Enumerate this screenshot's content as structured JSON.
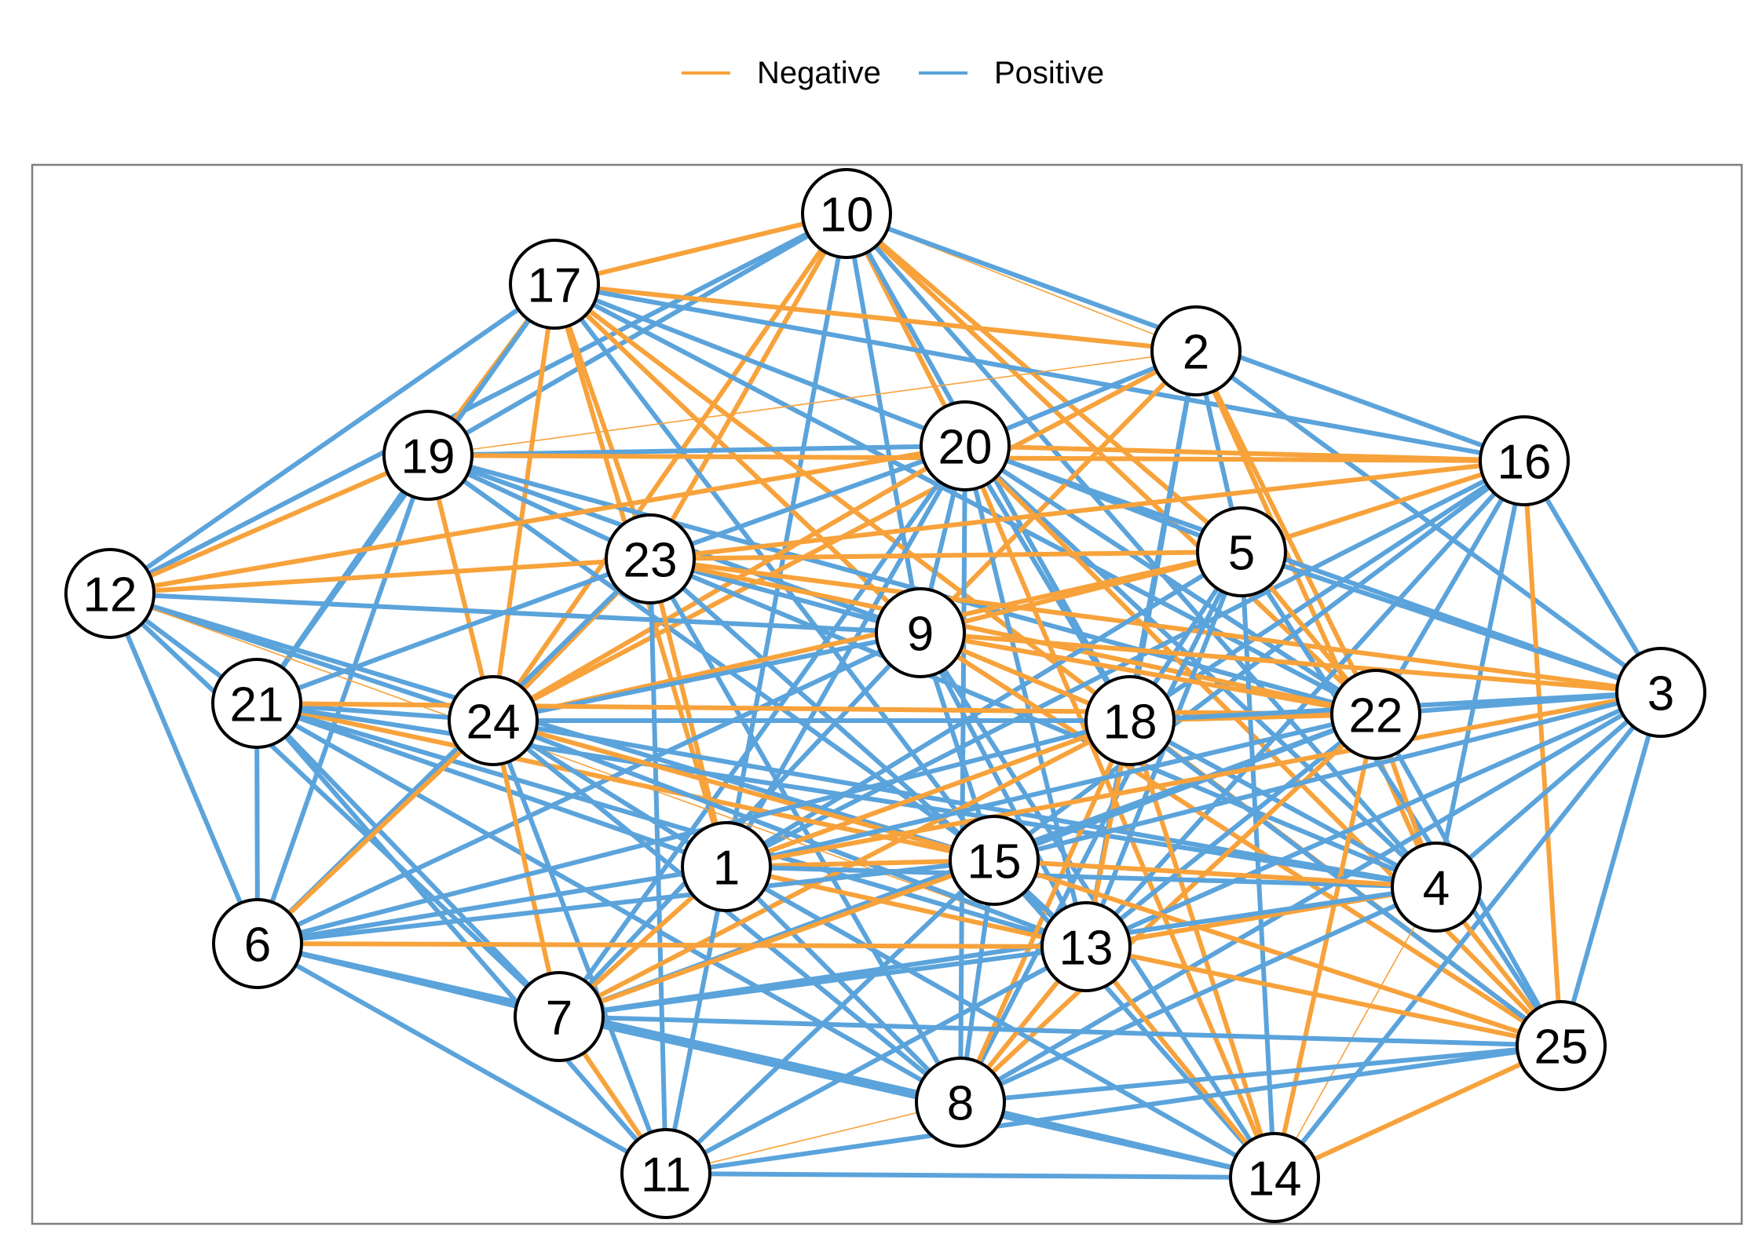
{
  "legend": {
    "negative_label": "Negative",
    "positive_label": "Positive",
    "negative_color": "#F7A23B",
    "positive_color": "#5BA3DB"
  },
  "nodes": [
    "1",
    "2",
    "3",
    "4",
    "5",
    "6",
    "7",
    "8",
    "9",
    "10",
    "11",
    "12",
    "13",
    "14",
    "15",
    "16",
    "17",
    "18",
    "19",
    "20",
    "21",
    "22",
    "23",
    "24",
    "25"
  ],
  "edges": [
    [
      "10",
      "17",
      "neg",
      "thick"
    ],
    [
      "10",
      "2",
      "neg",
      "thin"
    ],
    [
      "10",
      "20",
      "neg",
      "thick"
    ],
    [
      "10",
      "5",
      "neg",
      "thick"
    ],
    [
      "10",
      "22",
      "neg",
      "thick"
    ],
    [
      "10",
      "23",
      "neg",
      "thick"
    ],
    [
      "10",
      "24",
      "neg",
      "thick"
    ],
    [
      "10",
      "19",
      "pos",
      "thick"
    ],
    [
      "10",
      "12",
      "pos",
      "thick"
    ],
    [
      "10",
      "9",
      "pos",
      "thick"
    ],
    [
      "10",
      "1",
      "pos",
      "thick"
    ],
    [
      "10",
      "18",
      "pos",
      "thick"
    ],
    [
      "10",
      "16",
      "pos",
      "thick"
    ],
    [
      "10",
      "4",
      "pos",
      "thick"
    ],
    [
      "17",
      "2",
      "neg",
      "thick"
    ],
    [
      "17",
      "23",
      "neg",
      "thick"
    ],
    [
      "17",
      "24",
      "neg",
      "thick"
    ],
    [
      "17",
      "19",
      "neg",
      "thick"
    ],
    [
      "17",
      "9",
      "neg",
      "thick"
    ],
    [
      "17",
      "12",
      "pos",
      "thick"
    ],
    [
      "17",
      "22",
      "pos",
      "thick"
    ],
    [
      "17",
      "5",
      "pos",
      "thick"
    ],
    [
      "17",
      "16",
      "pos",
      "thick"
    ],
    [
      "17",
      "1",
      "neg",
      "thick"
    ],
    [
      "17",
      "25",
      "neg",
      "thick"
    ],
    [
      "17",
      "15",
      "pos",
      "thick"
    ],
    [
      "17",
      "21",
      "pos",
      "thick"
    ],
    [
      "2",
      "20",
      "pos",
      "thick"
    ],
    [
      "2",
      "19",
      "neg",
      "thin"
    ],
    [
      "2",
      "24",
      "neg",
      "thick"
    ],
    [
      "2",
      "22",
      "neg",
      "thick"
    ],
    [
      "2",
      "5",
      "pos",
      "thick"
    ],
    [
      "2",
      "3",
      "pos",
      "thick"
    ],
    [
      "2",
      "18",
      "pos",
      "thick"
    ],
    [
      "2",
      "9",
      "neg",
      "thick"
    ],
    [
      "2",
      "13",
      "pos",
      "thick"
    ],
    [
      "2",
      "4",
      "neg",
      "thick"
    ],
    [
      "19",
      "20",
      "pos",
      "thick"
    ],
    [
      "19",
      "16",
      "neg",
      "thick"
    ],
    [
      "19",
      "12",
      "neg",
      "thick"
    ],
    [
      "19",
      "24",
      "neg",
      "thick"
    ],
    [
      "19",
      "23",
      "pos",
      "thick"
    ],
    [
      "19",
      "22",
      "pos",
      "thick"
    ],
    [
      "19",
      "6",
      "pos",
      "thick"
    ],
    [
      "19",
      "21",
      "pos",
      "thick"
    ],
    [
      "19",
      "15",
      "pos",
      "thick"
    ],
    [
      "19",
      "9",
      "pos",
      "thick"
    ],
    [
      "20",
      "12",
      "neg",
      "thick"
    ],
    [
      "20",
      "16",
      "neg",
      "thick"
    ],
    [
      "20",
      "23",
      "pos",
      "thick"
    ],
    [
      "20",
      "24",
      "neg",
      "thick"
    ],
    [
      "20",
      "9",
      "pos",
      "thick"
    ],
    [
      "20",
      "22",
      "pos",
      "thick"
    ],
    [
      "20",
      "18",
      "pos",
      "thick"
    ],
    [
      "20",
      "4",
      "pos",
      "thick"
    ],
    [
      "20",
      "13",
      "pos",
      "thick"
    ],
    [
      "20",
      "14",
      "neg",
      "thick"
    ],
    [
      "20",
      "25",
      "neg",
      "thick"
    ],
    [
      "20",
      "3",
      "pos",
      "thick"
    ],
    [
      "20",
      "1",
      "pos",
      "thick"
    ],
    [
      "20",
      "7",
      "pos",
      "thick"
    ],
    [
      "20",
      "8",
      "pos",
      "thick"
    ],
    [
      "16",
      "5",
      "neg",
      "thick"
    ],
    [
      "16",
      "23",
      "neg",
      "thick"
    ],
    [
      "16",
      "22",
      "pos",
      "thick"
    ],
    [
      "16",
      "3",
      "pos",
      "thick"
    ],
    [
      "16",
      "18",
      "pos",
      "thick"
    ],
    [
      "16",
      "4",
      "pos",
      "thick"
    ],
    [
      "16",
      "25",
      "neg",
      "thick"
    ],
    [
      "16",
      "13",
      "pos",
      "thick"
    ],
    [
      "16",
      "15",
      "pos",
      "thick"
    ],
    [
      "16",
      "1",
      "pos",
      "thick"
    ],
    [
      "12",
      "23",
      "neg",
      "thick"
    ],
    [
      "12",
      "9",
      "pos",
      "thick"
    ],
    [
      "12",
      "21",
      "pos",
      "thick"
    ],
    [
      "12",
      "6",
      "pos",
      "thick"
    ],
    [
      "12",
      "24",
      "pos",
      "thick"
    ],
    [
      "12",
      "15",
      "pos",
      "thick"
    ],
    [
      "12",
      "7",
      "pos",
      "thick"
    ],
    [
      "12",
      "13",
      "neg",
      "thin"
    ],
    [
      "23",
      "5",
      "neg",
      "thick"
    ],
    [
      "23",
      "9",
      "pos",
      "thick"
    ],
    [
      "23",
      "3",
      "neg",
      "thick"
    ],
    [
      "23",
      "22",
      "neg",
      "thick"
    ],
    [
      "23",
      "24",
      "neg",
      "thick"
    ],
    [
      "23",
      "21",
      "pos",
      "thick"
    ],
    [
      "23",
      "1",
      "neg",
      "thick"
    ],
    [
      "23",
      "13",
      "pos",
      "thick"
    ],
    [
      "23",
      "8",
      "pos",
      "thick"
    ],
    [
      "23",
      "6",
      "pos",
      "thick"
    ],
    [
      "23",
      "11",
      "pos",
      "thick"
    ],
    [
      "23",
      "4",
      "pos",
      "thick"
    ],
    [
      "5",
      "9",
      "neg",
      "thick"
    ],
    [
      "5",
      "22",
      "neg",
      "thick"
    ],
    [
      "5",
      "24",
      "neg",
      "thick"
    ],
    [
      "5",
      "18",
      "pos",
      "thick"
    ],
    [
      "5",
      "13",
      "pos",
      "thick"
    ],
    [
      "5",
      "14",
      "pos",
      "thick"
    ],
    [
      "5",
      "1",
      "pos",
      "thick"
    ],
    [
      "5",
      "25",
      "pos",
      "thick"
    ],
    [
      "5",
      "3",
      "pos",
      "thick"
    ],
    [
      "5",
      "8",
      "pos",
      "thick"
    ],
    [
      "9",
      "3",
      "neg",
      "thick"
    ],
    [
      "9",
      "24",
      "pos",
      "thick"
    ],
    [
      "9",
      "18",
      "neg",
      "thick"
    ],
    [
      "9",
      "22",
      "neg",
      "thick"
    ],
    [
      "9",
      "15",
      "pos",
      "thick"
    ],
    [
      "9",
      "14",
      "pos",
      "thick"
    ],
    [
      "9",
      "7",
      "pos",
      "thick"
    ],
    [
      "9",
      "6",
      "pos",
      "thick"
    ],
    [
      "9",
      "25",
      "neg",
      "thick"
    ],
    [
      "9",
      "13",
      "pos",
      "thick"
    ],
    [
      "21",
      "24",
      "pos",
      "thick"
    ],
    [
      "21",
      "22",
      "neg",
      "thick"
    ],
    [
      "21",
      "6",
      "pos",
      "thick"
    ],
    [
      "21",
      "7",
      "pos",
      "thick"
    ],
    [
      "21",
      "11",
      "pos",
      "thick"
    ],
    [
      "21",
      "8",
      "pos",
      "thick"
    ],
    [
      "21",
      "13",
      "pos",
      "thick"
    ],
    [
      "21",
      "15",
      "neg",
      "thick"
    ],
    [
      "21",
      "1",
      "pos",
      "thick"
    ],
    [
      "21",
      "4",
      "pos",
      "thick"
    ],
    [
      "24",
      "18",
      "pos",
      "thick"
    ],
    [
      "24",
      "6",
      "neg",
      "thick"
    ],
    [
      "24",
      "7",
      "neg",
      "thick"
    ],
    [
      "24",
      "11",
      "pos",
      "thick"
    ],
    [
      "24",
      "15",
      "neg",
      "thick"
    ],
    [
      "24",
      "13",
      "pos",
      "thick"
    ],
    [
      "24",
      "1",
      "pos",
      "thick"
    ],
    [
      "24",
      "4",
      "pos",
      "thick"
    ],
    [
      "24",
      "8",
      "pos",
      "thick"
    ],
    [
      "18",
      "22",
      "neg",
      "thick"
    ],
    [
      "18",
      "3",
      "pos",
      "thick"
    ],
    [
      "18",
      "1",
      "neg",
      "thick"
    ],
    [
      "18",
      "7",
      "neg",
      "thick"
    ],
    [
      "18",
      "13",
      "neg",
      "thick"
    ],
    [
      "18",
      "8",
      "neg",
      "thick"
    ],
    [
      "18",
      "14",
      "neg",
      "thick"
    ],
    [
      "18",
      "25",
      "pos",
      "thick"
    ],
    [
      "18",
      "4",
      "pos",
      "thick"
    ],
    [
      "18",
      "6",
      "pos",
      "thick"
    ],
    [
      "22",
      "3",
      "pos",
      "thick"
    ],
    [
      "22",
      "4",
      "neg",
      "thick"
    ],
    [
      "22",
      "25",
      "pos",
      "thick"
    ],
    [
      "22",
      "13",
      "pos",
      "thick"
    ],
    [
      "22",
      "8",
      "neg",
      "thick"
    ],
    [
      "22",
      "14",
      "neg",
      "thick"
    ],
    [
      "22",
      "15",
      "pos",
      "thick"
    ],
    [
      "22",
      "1",
      "pos",
      "thick"
    ],
    [
      "22",
      "7",
      "pos",
      "thick"
    ],
    [
      "3",
      "4",
      "pos",
      "thick"
    ],
    [
      "3",
      "25",
      "pos",
      "thick"
    ],
    [
      "3",
      "13",
      "pos",
      "thick"
    ],
    [
      "3",
      "1",
      "neg",
      "thick"
    ],
    [
      "3",
      "8",
      "pos",
      "thick"
    ],
    [
      "3",
      "15",
      "pos",
      "thick"
    ],
    [
      "3",
      "14",
      "pos",
      "thick"
    ],
    [
      "1",
      "15",
      "neg",
      "thick"
    ],
    [
      "1",
      "6",
      "pos",
      "thick"
    ],
    [
      "1",
      "7",
      "neg",
      "thick"
    ],
    [
      "1",
      "11",
      "pos",
      "thick"
    ],
    [
      "1",
      "13",
      "neg",
      "thick"
    ],
    [
      "1",
      "4",
      "pos",
      "thick"
    ],
    [
      "1",
      "8",
      "pos",
      "thick"
    ],
    [
      "1",
      "14",
      "pos",
      "thick"
    ],
    [
      "15",
      "13",
      "pos",
      "thick"
    ],
    [
      "15",
      "6",
      "pos",
      "thick"
    ],
    [
      "15",
      "7",
      "neg",
      "thick"
    ],
    [
      "15",
      "8",
      "pos",
      "thick"
    ],
    [
      "15",
      "11",
      "pos",
      "thick"
    ],
    [
      "15",
      "4",
      "neg",
      "thick"
    ],
    [
      "15",
      "25",
      "neg",
      "thick"
    ],
    [
      "15",
      "14",
      "pos",
      "thick"
    ],
    [
      "4",
      "13",
      "neg",
      "thick"
    ],
    [
      "4",
      "25",
      "neg",
      "thick"
    ],
    [
      "4",
      "14",
      "neg",
      "thin"
    ],
    [
      "4",
      "8",
      "pos",
      "thick"
    ],
    [
      "4",
      "7",
      "pos",
      "thick"
    ],
    [
      "6",
      "13",
      "neg",
      "thick"
    ],
    [
      "6",
      "7",
      "pos",
      "thick"
    ],
    [
      "6",
      "11",
      "pos",
      "thick"
    ],
    [
      "6",
      "8",
      "pos",
      "thick"
    ],
    [
      "13",
      "7",
      "pos",
      "thick"
    ],
    [
      "13",
      "8",
      "neg",
      "thick"
    ],
    [
      "13",
      "14",
      "neg",
      "thick"
    ],
    [
      "13",
      "25",
      "neg",
      "thick"
    ],
    [
      "13",
      "11",
      "pos",
      "thick"
    ],
    [
      "7",
      "8",
      "pos",
      "thick"
    ],
    [
      "7",
      "11",
      "neg",
      "thick"
    ],
    [
      "7",
      "25",
      "pos",
      "thick"
    ],
    [
      "7",
      "14",
      "pos",
      "thick"
    ],
    [
      "8",
      "11",
      "neg",
      "thin"
    ],
    [
      "8",
      "25",
      "pos",
      "thick"
    ],
    [
      "8",
      "14",
      "pos",
      "thick"
    ],
    [
      "25",
      "14",
      "neg",
      "thick"
    ],
    [
      "11",
      "14",
      "pos",
      "thick"
    ],
    [
      "11",
      "25",
      "pos",
      "thick"
    ]
  ]
}
